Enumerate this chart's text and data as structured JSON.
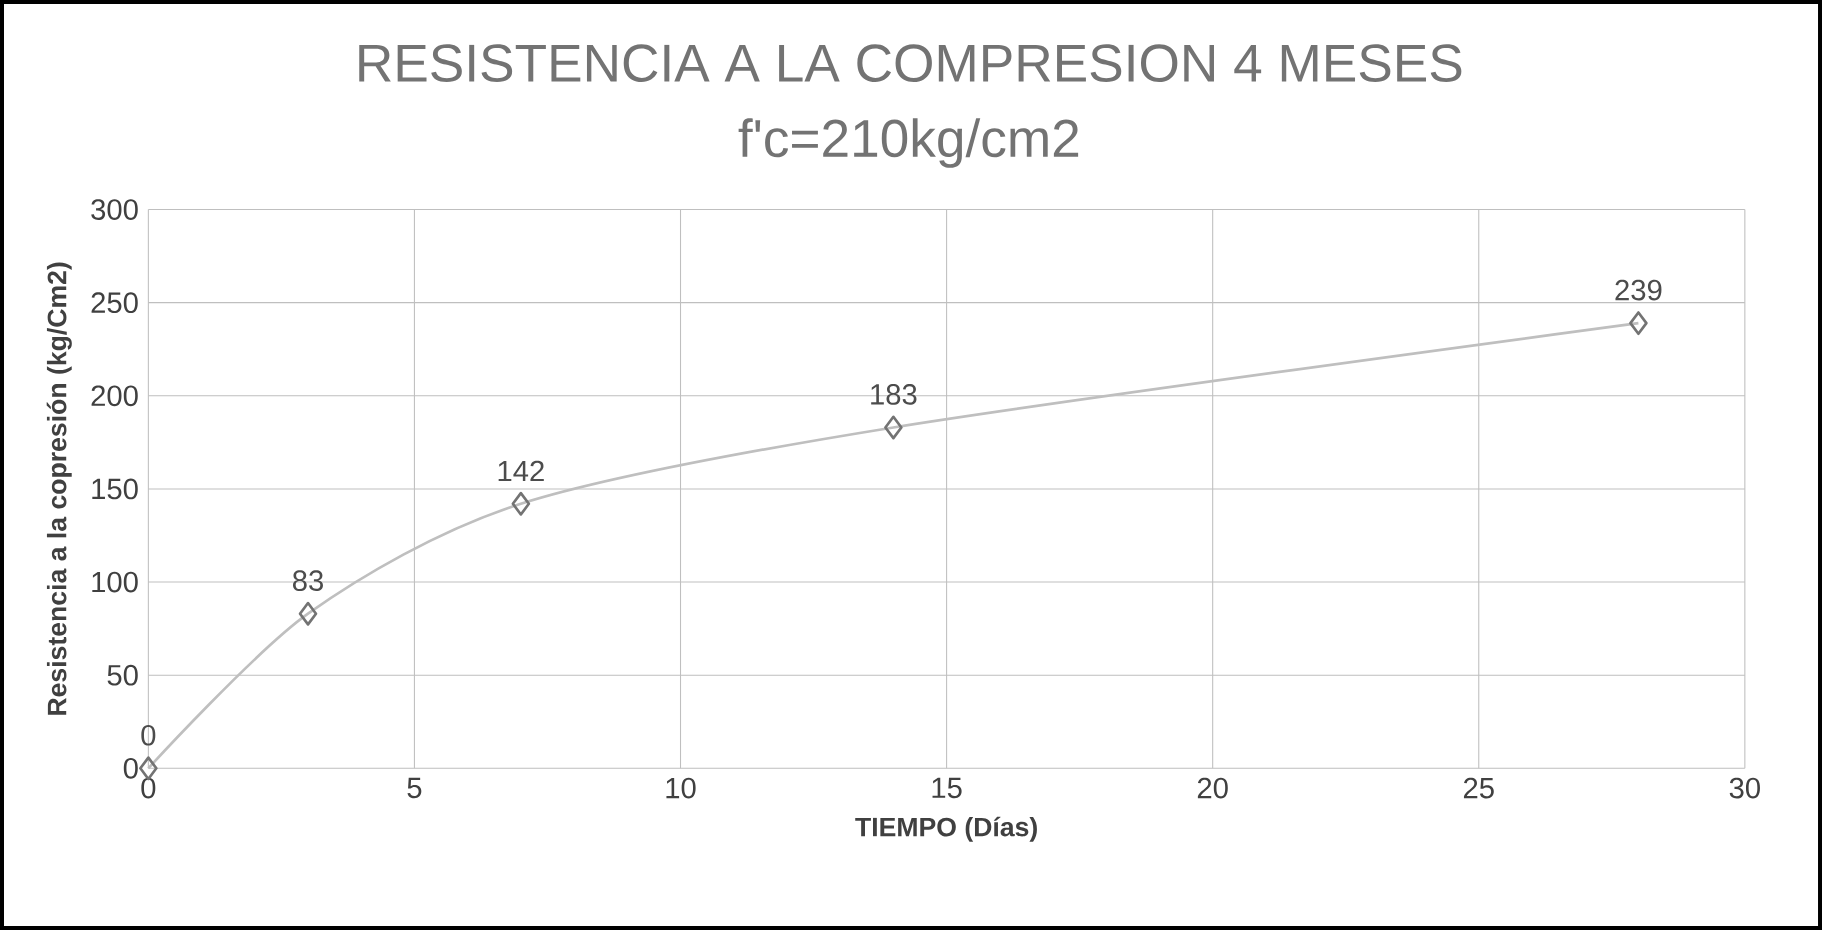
{
  "chart_data": {
    "type": "line",
    "title": "RESISTENCIA A LA COMPRESION 4 MESES",
    "subtitle": "f'c=210kg/cm2",
    "xlabel": "TIEMPO (Días)",
    "ylabel": "Resistencia a la copresión (kg/Cm2)",
    "x": [
      0,
      3,
      7,
      14,
      28
    ],
    "values": [
      0,
      83,
      142,
      183,
      239
    ],
    "color": "#bfbfbf",
    "marker": "diamond",
    "data_labels": true,
    "grid": true,
    "xlim": [
      0,
      30
    ],
    "xticks": [
      0,
      5,
      10,
      15,
      20,
      25,
      30
    ],
    "ylim": [
      0,
      300
    ],
    "yticks": [
      0,
      50,
      100,
      150,
      200,
      250,
      300
    ]
  }
}
